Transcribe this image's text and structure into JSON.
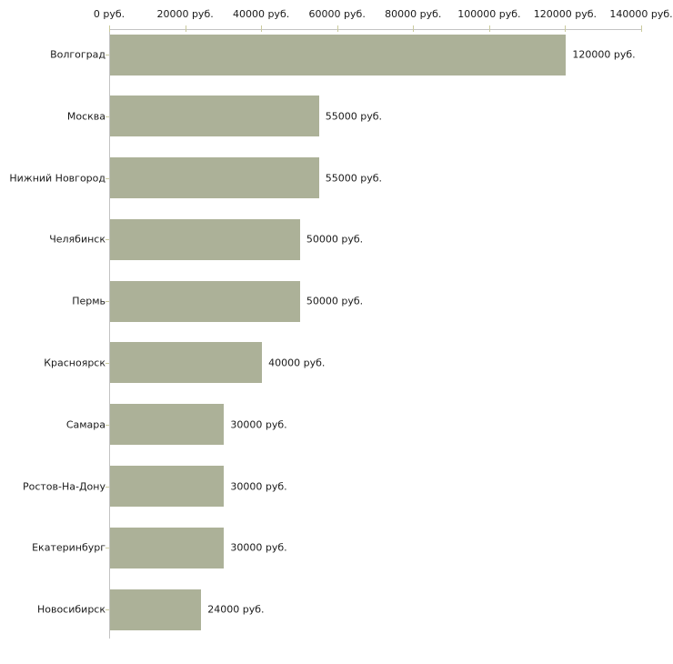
{
  "chart_data": {
    "type": "bar",
    "orientation": "horizontal",
    "title": "",
    "xlabel": "",
    "ylabel": "",
    "categories": [
      "Волгоград",
      "Москва",
      "Нижний Новгород",
      "Челябинск",
      "Пермь",
      "Красноярск",
      "Самара",
      "Ростов-На-Дону",
      "Екатеринбург",
      "Новосибирск"
    ],
    "values": [
      120000,
      55000,
      55000,
      50000,
      50000,
      40000,
      30000,
      30000,
      30000,
      24000
    ],
    "value_labels": [
      "120000 руб.",
      "55000 руб.",
      "55000 руб.",
      "50000 руб.",
      "50000 руб.",
      "40000 руб.",
      "30000 руб.",
      "30000 руб.",
      "30000 руб.",
      "24000 руб."
    ],
    "x_ticks": [
      0,
      20000,
      40000,
      60000,
      80000,
      100000,
      120000,
      140000
    ],
    "x_tick_labels": [
      "0 руб.",
      "20000 руб.",
      "40000 руб.",
      "60000 руб.",
      "80000 руб.",
      "100000 руб.",
      "120000 руб.",
      "140000 руб."
    ],
    "xlim": [
      0,
      140000
    ],
    "grid": false,
    "legend": "none",
    "colors": {
      "bar": "#acb198",
      "axis": "#c3c3c3",
      "tick": "#cbcb9e",
      "text": "#1a1a1a",
      "background": "#ffffff"
    }
  }
}
